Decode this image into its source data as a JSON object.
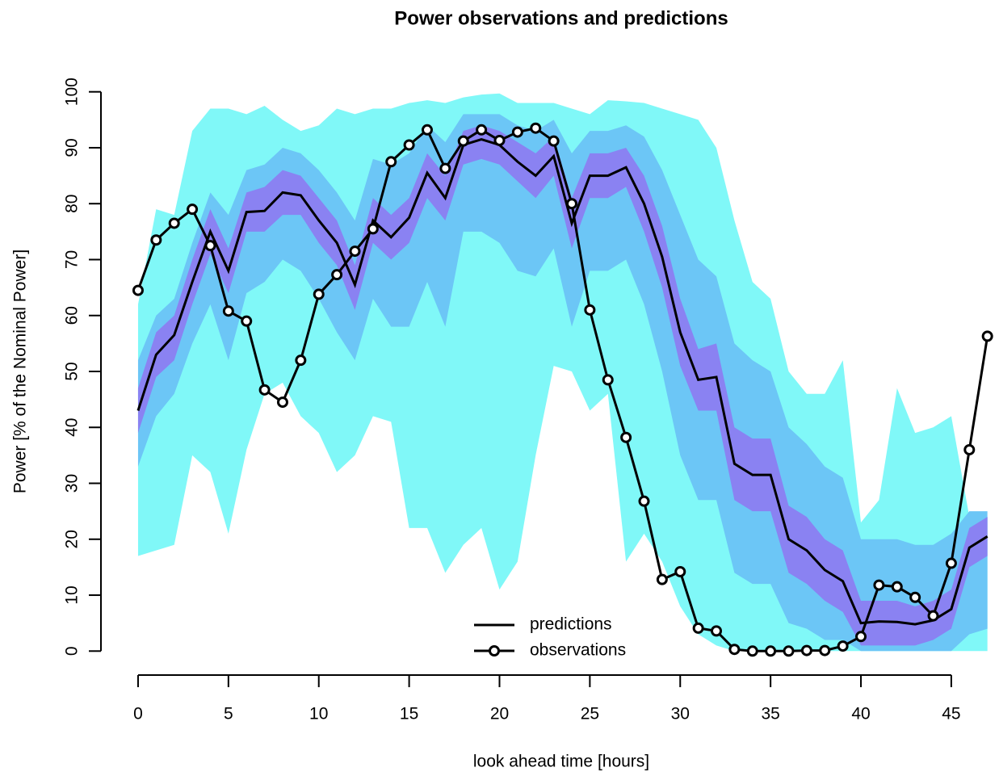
{
  "chart_data": {
    "type": "fan",
    "title": "Power observations and predictions",
    "xlabel": "look ahead time [hours]",
    "ylabel": "Power [% of the Nominal Power]",
    "x": [
      0,
      1,
      2,
      3,
      4,
      5,
      6,
      7,
      8,
      9,
      10,
      11,
      12,
      13,
      14,
      15,
      16,
      17,
      18,
      19,
      20,
      21,
      22,
      23,
      24,
      25,
      26,
      27,
      28,
      29,
      30,
      31,
      32,
      33,
      34,
      35,
      36,
      37,
      38,
      39,
      40,
      41,
      42,
      43,
      44,
      45,
      46,
      47
    ],
    "xlim": [
      -1.92,
      49.92
    ],
    "ylim": [
      -4,
      104
    ],
    "xticks": [
      0,
      5,
      10,
      15,
      20,
      25,
      30,
      35,
      40,
      45
    ],
    "yticks": [
      0,
      10,
      20,
      30,
      40,
      50,
      60,
      70,
      80,
      90,
      100
    ],
    "legend": "bottom",
    "bands": [
      {
        "color": "#80f8f8",
        "upper": [
          62,
          79,
          78,
          93,
          97,
          97,
          96,
          97.5,
          95,
          93,
          94,
          97,
          96,
          97,
          97,
          98,
          98.5,
          98,
          99,
          99.5,
          99.7,
          98,
          98,
          98,
          97,
          96,
          98.5,
          98.3,
          98,
          97,
          96,
          95,
          90,
          77,
          66,
          63,
          50,
          46,
          46,
          52,
          23,
          27,
          47,
          39,
          40,
          42,
          24,
          24
        ],
        "lower": [
          17,
          18,
          19,
          35,
          32,
          21,
          36,
          46,
          48,
          42,
          39,
          32,
          35,
          42,
          41,
          22,
          22,
          14,
          19,
          22,
          11,
          16,
          35,
          51,
          50,
          43,
          46,
          16,
          21,
          16,
          8,
          3,
          1,
          0,
          0,
          0,
          0,
          0,
          0,
          0,
          0,
          0,
          0,
          0,
          0,
          0,
          0,
          0
        ]
      },
      {
        "color": "#6cc6f6",
        "upper": [
          52,
          60,
          63,
          73,
          82,
          78,
          86,
          87,
          90,
          89,
          86,
          82,
          77,
          88,
          87,
          89,
          94,
          91,
          96,
          96,
          96,
          94,
          93,
          95,
          89,
          93,
          93,
          94,
          92,
          86,
          78,
          70,
          67,
          55,
          52,
          50,
          40,
          37,
          33,
          31,
          20,
          20,
          20,
          19,
          19,
          21,
          25,
          25
        ],
        "lower": [
          33,
          42,
          46,
          55,
          62,
          52,
          64,
          66,
          70,
          68,
          63,
          57,
          52,
          63,
          58,
          58,
          66,
          58,
          75,
          75,
          73,
          68,
          67,
          72,
          58,
          68,
          68,
          70,
          62,
          50,
          35,
          27,
          27,
          14,
          12,
          12,
          5,
          4,
          2,
          2,
          0,
          0,
          0,
          0,
          0,
          0,
          3,
          4
        ]
      },
      {
        "color": "#8a82f2",
        "upper": [
          47,
          57,
          60,
          70,
          79,
          72,
          82,
          83,
          86,
          85,
          81,
          77,
          69,
          81,
          78,
          81,
          89,
          85,
          93,
          94,
          93,
          91,
          89,
          92,
          81,
          89,
          89,
          90,
          85,
          76,
          63,
          54,
          55,
          40,
          38,
          38,
          26,
          24,
          20,
          18,
          9,
          9,
          9,
          8,
          9,
          11,
          22,
          24
        ],
        "lower": [
          39,
          49,
          52,
          62,
          71,
          64,
          75,
          75,
          78,
          78,
          73,
          69,
          61,
          73,
          70,
          73,
          81,
          77,
          87,
          88,
          87,
          84,
          81,
          85,
          72,
          81,
          81,
          83,
          75,
          65,
          51,
          43,
          43,
          27,
          25,
          25,
          14,
          12,
          9,
          7,
          1,
          1,
          1,
          1,
          2,
          4,
          15,
          17
        ]
      }
    ],
    "series": [
      {
        "name": "predictions",
        "color": "#000000",
        "marker": "none",
        "values": [
          43,
          53,
          56.5,
          66,
          75,
          68,
          78.5,
          78.7,
          82,
          81.5,
          77,
          73,
          65.5,
          77,
          74,
          77.5,
          85.5,
          81,
          90.5,
          91.5,
          90.5,
          87.5,
          85,
          88.5,
          76.5,
          85,
          85,
          86.5,
          80,
          70.5,
          57,
          48.5,
          49,
          33.5,
          31.5,
          31.5,
          20,
          18,
          14.5,
          12.5,
          5,
          5.3,
          5.2,
          4.8,
          5.5,
          7.5,
          18.5,
          20.5
        ]
      },
      {
        "name": "observations",
        "color": "#000000",
        "marker": "circle",
        "values": [
          64.5,
          73.5,
          76.5,
          79,
          72.5,
          60.8,
          59,
          46.7,
          44.5,
          52,
          63.8,
          67.3,
          71.5,
          75.5,
          87.5,
          90.5,
          93.2,
          86.3,
          91.2,
          93.2,
          91.3,
          92.8,
          93.5,
          91.2,
          80,
          61,
          48.5,
          38.2,
          26.8,
          12.8,
          14.2,
          4.1,
          3.6,
          0.3,
          0,
          0,
          0,
          0.1,
          0.1,
          0.9,
          2.6,
          11.8,
          11.5,
          9.6,
          6.3,
          15.7,
          36,
          56.3
        ]
      }
    ]
  }
}
